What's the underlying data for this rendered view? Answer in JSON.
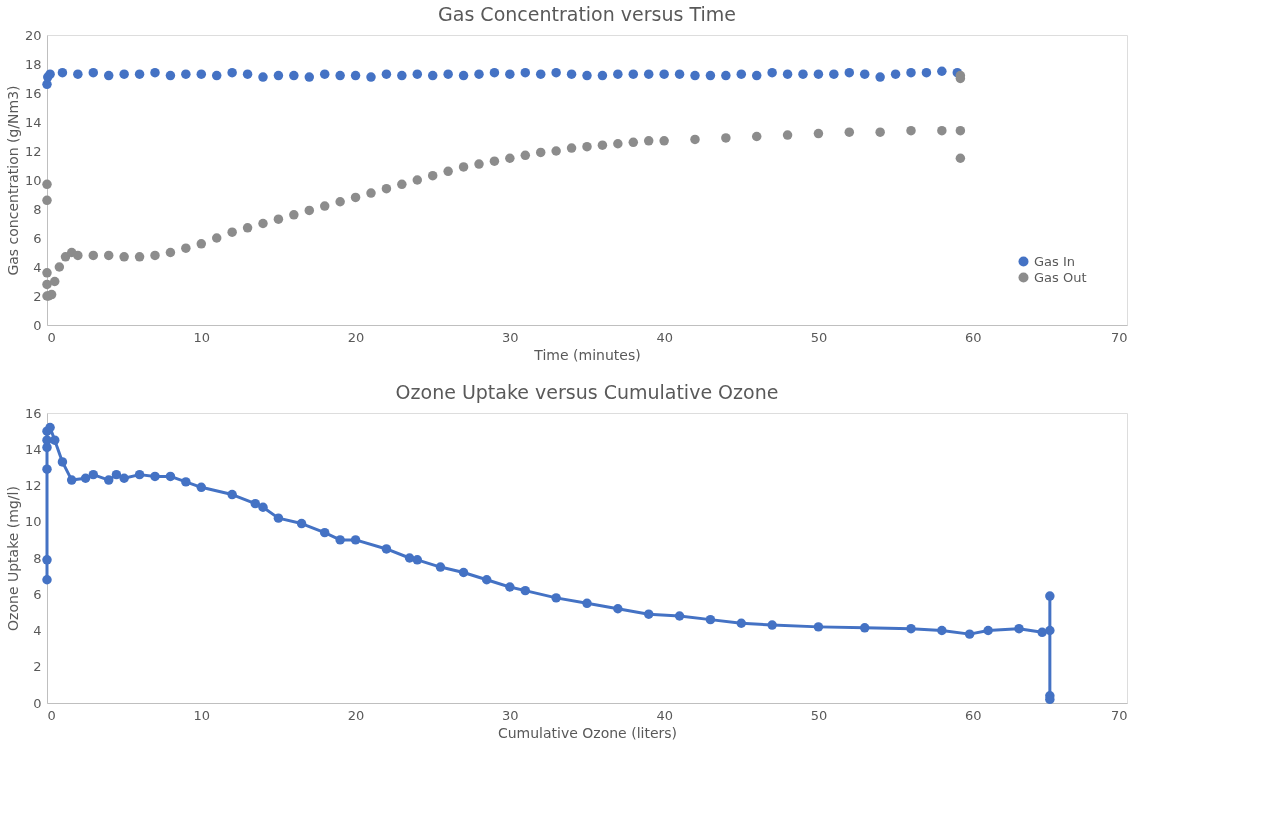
{
  "chart_data": [
    {
      "type": "scatter",
      "title": "Gas Concentration versus Time",
      "xlabel": "Time (minutes)",
      "ylabel": "Gas concentration (g/Nm3)",
      "xlim": [
        0,
        70
      ],
      "xticks": [
        0,
        10,
        20,
        30,
        40,
        50,
        60,
        70
      ],
      "ylim": [
        0,
        20
      ],
      "yticks": [
        0,
        2,
        4,
        6,
        8,
        10,
        12,
        14,
        16,
        18,
        20
      ],
      "grid": false,
      "legend": "bottom right",
      "marker": "circle",
      "series": [
        {
          "name": "Gas In",
          "color": "#4472c4",
          "x": [
            0,
            0.05,
            0.2,
            1,
            2,
            3,
            4,
            5,
            6,
            7,
            8,
            9,
            10,
            11,
            12,
            13,
            14,
            15,
            16,
            17,
            18,
            19,
            20,
            21,
            22,
            23,
            24,
            25,
            26,
            27,
            28,
            29,
            30,
            31,
            32,
            33,
            34,
            35,
            36,
            37,
            38,
            39,
            40,
            41,
            42,
            43,
            44,
            45,
            46,
            47,
            48,
            49,
            50,
            51,
            52,
            53,
            54,
            55,
            56,
            57,
            58,
            59
          ],
          "values": [
            16.6,
            17.1,
            17.3,
            17.4,
            17.3,
            17.4,
            17.2,
            17.3,
            17.3,
            17.4,
            17.2,
            17.3,
            17.3,
            17.2,
            17.4,
            17.3,
            17.1,
            17.2,
            17.2,
            17.1,
            17.3,
            17.2,
            17.2,
            17.1,
            17.3,
            17.2,
            17.3,
            17.2,
            17.3,
            17.2,
            17.3,
            17.4,
            17.3,
            17.4,
            17.3,
            17.4,
            17.3,
            17.2,
            17.2,
            17.3,
            17.3,
            17.3,
            17.3,
            17.3,
            17.2,
            17.2,
            17.2,
            17.3,
            17.2,
            17.4,
            17.3,
            17.3,
            17.3,
            17.3,
            17.4,
            17.3,
            17.1,
            17.3,
            17.4,
            17.4,
            17.5,
            17.4
          ]
        },
        {
          "name": "Gas Out",
          "color": "#8c8c8c",
          "x": [
            0,
            0,
            0,
            0,
            0,
            0.1,
            0.3,
            0.5,
            0.8,
            1.2,
            1.6,
            2,
            3,
            4,
            5,
            6,
            7,
            8,
            9,
            10,
            11,
            12,
            13,
            14,
            15,
            16,
            17,
            18,
            19,
            20,
            21,
            22,
            23,
            24,
            25,
            26,
            27,
            28,
            29,
            30,
            31,
            32,
            33,
            34,
            35,
            36,
            37,
            38,
            39,
            40,
            42,
            44,
            46,
            48,
            50,
            52,
            54,
            56,
            58,
            59.2,
            59.2,
            59.2,
            59.2
          ],
          "values": [
            9.7,
            8.6,
            3.6,
            2.8,
            2.0,
            2.0,
            2.1,
            3.0,
            4.0,
            4.7,
            5.0,
            4.8,
            4.8,
            4.8,
            4.7,
            4.7,
            4.8,
            5.0,
            5.3,
            5.6,
            6.0,
            6.4,
            6.7,
            7.0,
            7.3,
            7.6,
            7.9,
            8.2,
            8.5,
            8.8,
            9.1,
            9.4,
            9.7,
            10.0,
            10.3,
            10.6,
            10.9,
            11.1,
            11.3,
            11.5,
            11.7,
            11.9,
            12.0,
            12.2,
            12.3,
            12.4,
            12.5,
            12.6,
            12.7,
            12.7,
            12.8,
            12.9,
            13.0,
            13.1,
            13.2,
            13.3,
            13.3,
            13.4,
            13.4,
            13.4,
            11.5,
            17.0,
            17.2
          ]
        }
      ]
    },
    {
      "type": "line",
      "title": "Ozone Uptake versus Cumulative Ozone",
      "xlabel": "Cumulative Ozone (liters)",
      "ylabel": "Ozone Uptake (mg/l)",
      "xlim": [
        0,
        70
      ],
      "xticks": [
        0,
        10,
        20,
        30,
        40,
        50,
        60,
        70
      ],
      "ylim": [
        0,
        16
      ],
      "yticks": [
        0,
        2,
        4,
        6,
        8,
        10,
        12,
        14,
        16
      ],
      "grid": false,
      "marker": "circle",
      "series": [
        {
          "color": "#4472c4",
          "x": [
            0,
            0,
            0,
            0,
            0,
            0,
            0.2,
            0.5,
            1,
            1.6,
            2.5,
            3,
            4,
            4.5,
            5,
            6,
            7,
            8,
            9,
            10,
            12,
            13.5,
            14,
            15,
            16.5,
            18,
            19,
            20,
            22,
            23.5,
            24,
            25.5,
            27,
            28.5,
            30,
            31,
            33,
            35,
            37,
            39,
            41,
            43,
            45,
            47,
            50,
            53,
            56,
            58,
            59.8,
            61,
            63,
            64.5,
            65,
            65,
            65,
            65
          ],
          "values": [
            6.8,
            7.9,
            12.9,
            14.1,
            14.5,
            15.0,
            15.2,
            14.5,
            13.3,
            12.3,
            12.4,
            12.6,
            12.3,
            12.6,
            12.4,
            12.6,
            12.5,
            12.5,
            12.2,
            11.9,
            11.5,
            11.0,
            10.8,
            10.2,
            9.9,
            9.4,
            9.0,
            9.0,
            8.5,
            8.0,
            7.9,
            7.5,
            7.2,
            6.8,
            6.4,
            6.2,
            5.8,
            5.5,
            5.2,
            4.9,
            4.8,
            4.6,
            4.4,
            4.3,
            4.2,
            4.15,
            4.1,
            4.0,
            3.8,
            4.0,
            4.1,
            3.9,
            4.0,
            5.9,
            0.4,
            0.2
          ]
        }
      ]
    }
  ]
}
